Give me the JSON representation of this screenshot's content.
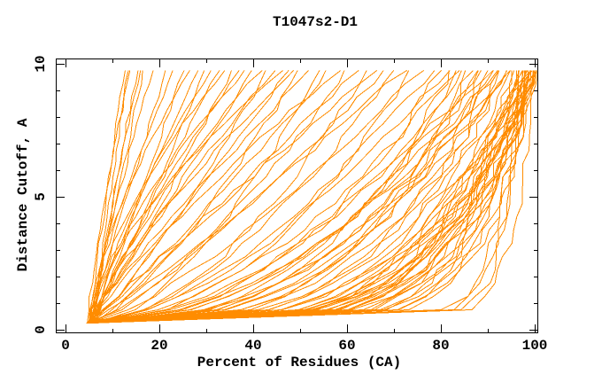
{
  "page": {
    "background": "#ffffff"
  },
  "chart_data": {
    "type": "line",
    "title": "T1047s2-D1",
    "xlabel": "Percent of Residues (CA)",
    "ylabel": "Distance Cutoff, A",
    "xlim": [
      0,
      100
    ],
    "ylim": [
      0,
      10
    ],
    "grid": false,
    "legend": "none",
    "line_color": "#ff8c00",
    "axis_color": "#000000",
    "background": "#ffffff",
    "xticks_major": [
      0,
      20,
      40,
      60,
      80,
      100
    ],
    "xticks_minor": [
      10,
      30,
      50,
      70,
      90
    ],
    "yticks_major": [
      0,
      5,
      10
    ],
    "yticks_minor": [
      1,
      2,
      3,
      4,
      6,
      7,
      8,
      9
    ],
    "cutoffs": [
      0.25,
      0.75,
      1.25,
      1.75,
      2.25,
      2.75,
      3.25,
      3.75,
      4.25,
      4.75,
      5.25,
      5.75,
      6.25,
      6.75,
      7.25,
      7.75,
      8.25,
      8.75,
      9.25,
      9.75
    ],
    "series_format": [
      "start_percent_at_lowest_cutoff",
      "end_percent_at_highest_cutoff",
      "shape_exponent_g"
    ],
    "point_model": "percent(d) = start + (end - start) * ((d - 0.25) / 9.5) ^ g",
    "series": [
      [
        5.2,
        12.5,
        1.1
      ],
      [
        5.8,
        13.2,
        1.0
      ],
      [
        4.6,
        13.8,
        1.25
      ],
      [
        5.5,
        15.3,
        1.05
      ],
      [
        6.0,
        15.9,
        1.15
      ],
      [
        5.1,
        16.5,
        0.95
      ],
      [
        5.6,
        18.5,
        1.2
      ],
      [
        4.9,
        21.5,
        1.0
      ],
      [
        5.3,
        23.0,
        1.3
      ],
      [
        6.2,
        25.0,
        0.95
      ],
      [
        5.0,
        26.5,
        1.5
      ],
      [
        5.7,
        28.0,
        1.1
      ],
      [
        4.6,
        29.5,
        0.85
      ],
      [
        6.4,
        31.0,
        1.4
      ],
      [
        5.2,
        32.5,
        1.0
      ],
      [
        5.9,
        34.0,
        1.6
      ],
      [
        4.8,
        35.5,
        0.9
      ],
      [
        6.1,
        37.0,
        1.2
      ],
      [
        5.4,
        38.5,
        1.45
      ],
      [
        5.0,
        40.0,
        1.0
      ],
      [
        6.3,
        41.5,
        1.3
      ],
      [
        4.7,
        43.0,
        0.8
      ],
      [
        5.6,
        44.5,
        1.15
      ],
      [
        5.1,
        46.0,
        1.5
      ],
      [
        6.0,
        47.5,
        0.95
      ],
      [
        5.3,
        48.5,
        1.25
      ],
      [
        5.5,
        50.0,
        0.75
      ],
      [
        4.9,
        52.0,
        1.1
      ],
      [
        6.2,
        54.0,
        0.6
      ],
      [
        5.1,
        56.0,
        0.9
      ],
      [
        5.8,
        58.0,
        1.2
      ],
      [
        4.6,
        60.0,
        0.7
      ],
      [
        6.0,
        62.0,
        0.95
      ],
      [
        5.2,
        64.0,
        0.55
      ],
      [
        5.6,
        66.0,
        1.05
      ],
      [
        4.8,
        68.0,
        0.8
      ],
      [
        6.3,
        70.0,
        0.6
      ],
      [
        5.0,
        72.0,
        0.9
      ],
      [
        5.7,
        74.0,
        0.5
      ],
      [
        5.3,
        76.0,
        0.75
      ],
      [
        6.1,
        78.0,
        0.62
      ],
      [
        5.4,
        80.0,
        0.45
      ],
      [
        4.7,
        81.0,
        0.6
      ],
      [
        5.9,
        82.0,
        0.35
      ],
      [
        5.1,
        83.0,
        0.55
      ],
      [
        6.2,
        84.0,
        0.4
      ],
      [
        4.9,
        85.0,
        0.5
      ],
      [
        5.5,
        86.0,
        0.3
      ],
      [
        5.8,
        87.0,
        0.45
      ],
      [
        5.0,
        88.0,
        0.38
      ],
      [
        6.0,
        88.5,
        0.55
      ],
      [
        4.6,
        89.0,
        0.32
      ],
      [
        5.3,
        90.0,
        0.48
      ],
      [
        5.7,
        90.5,
        0.28
      ],
      [
        6.1,
        91.0,
        0.42
      ],
      [
        4.8,
        91.5,
        0.36
      ],
      [
        5.2,
        92.0,
        0.5
      ],
      [
        5.6,
        92.5,
        0.3
      ],
      [
        5.9,
        93.0,
        0.44
      ],
      [
        5.1,
        93.5,
        0.26
      ],
      [
        6.2,
        94.0,
        0.4
      ],
      [
        4.7,
        94.5,
        0.34
      ],
      [
        5.5,
        95.0,
        0.22
      ],
      [
        5.0,
        95.5,
        0.3
      ],
      [
        5.8,
        96.0,
        0.18
      ],
      [
        4.8,
        96.3,
        0.27
      ],
      [
        6.1,
        96.6,
        0.2
      ],
      [
        5.3,
        97.0,
        0.25
      ],
      [
        5.6,
        97.2,
        0.16
      ],
      [
        4.9,
        97.5,
        0.24
      ],
      [
        5.2,
        97.8,
        0.19
      ],
      [
        6.0,
        98.0,
        0.28
      ],
      [
        5.4,
        98.2,
        0.15
      ],
      [
        4.7,
        98.4,
        0.22
      ],
      [
        5.7,
        98.6,
        0.18
      ],
      [
        5.1,
        98.8,
        0.26
      ],
      [
        5.9,
        99.0,
        0.14
      ],
      [
        5.3,
        99.1,
        0.21
      ],
      [
        4.8,
        99.2,
        0.17
      ],
      [
        5.5,
        99.3,
        0.24
      ],
      [
        6.2,
        99.4,
        0.13
      ],
      [
        5.0,
        99.5,
        0.2
      ],
      [
        5.6,
        99.6,
        0.16
      ],
      [
        4.9,
        99.7,
        0.23
      ],
      [
        5.2,
        99.8,
        0.12
      ],
      [
        5.8,
        99.9,
        0.19
      ],
      [
        5.4,
        100.0,
        0.15
      ],
      [
        5.1,
        100.0,
        0.22
      ],
      [
        6.0,
        100.0,
        0.11
      ],
      [
        4.6,
        100.0,
        0.18
      ],
      [
        5.7,
        100.0,
        0.25
      ],
      [
        5.3,
        100.0,
        0.14
      ],
      [
        5.0,
        96.5,
        0.06
      ],
      [
        5.5,
        97.5,
        0.05
      ],
      [
        4.8,
        98.5,
        0.07
      ],
      [
        5.2,
        99.5,
        0.045
      ]
    ]
  }
}
